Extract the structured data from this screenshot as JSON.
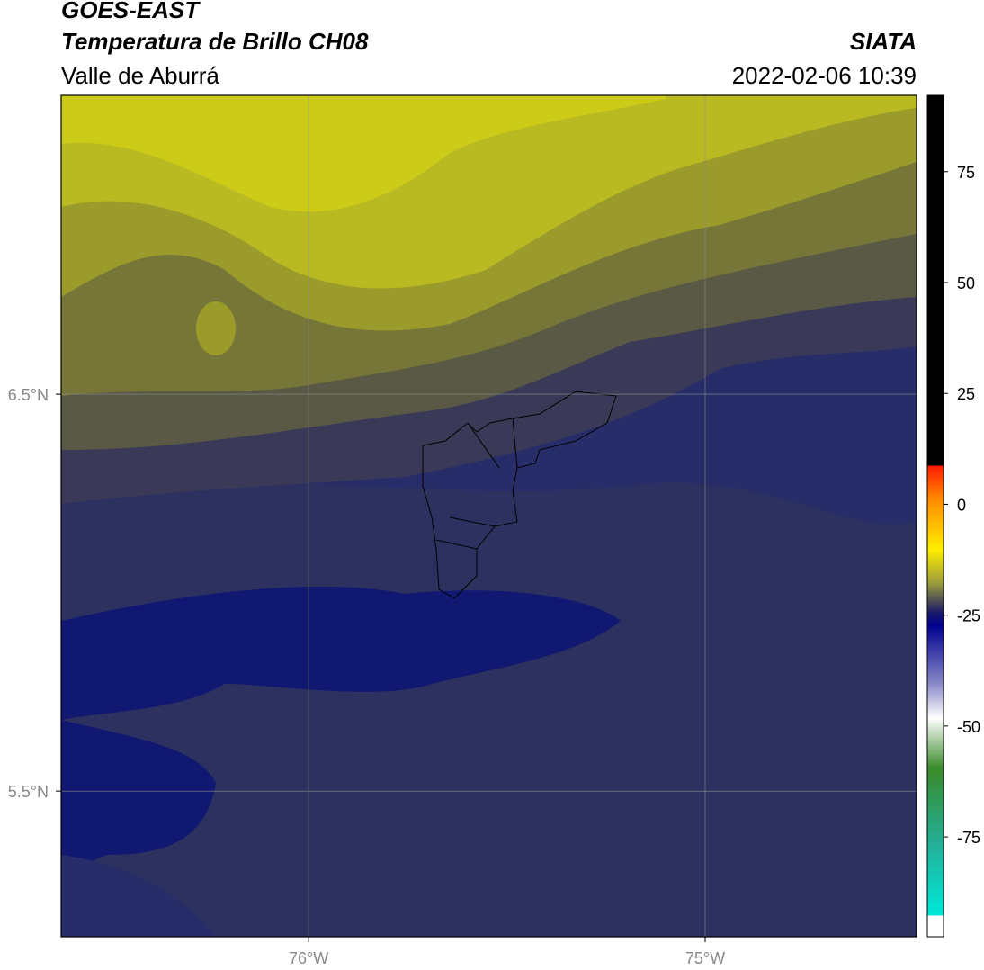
{
  "header": {
    "title": "GOES-EAST",
    "subtitle": "Temperatura de Brillo CH08",
    "region": "Valle de Aburrá",
    "source": "SIATA",
    "datetime": "2022-02-06 10:39"
  },
  "map": {
    "lonlim": [
      -76.624,
      -74.467
    ],
    "latlim": [
      5.133,
      7.253
    ],
    "lonticks": [
      {
        "value": -76,
        "label": "76°W"
      },
      {
        "value": -75,
        "label": "75°W"
      }
    ],
    "latticks": [
      {
        "value": 6.5,
        "label": "6.5°N"
      },
      {
        "value": 5.5,
        "label": "5.5°N"
      }
    ]
  },
  "colorbar": {
    "lim": [
      -97.5,
      92.2
    ],
    "ticks": [
      75,
      50,
      25,
      0,
      -25,
      -50,
      -75
    ]
  }
}
